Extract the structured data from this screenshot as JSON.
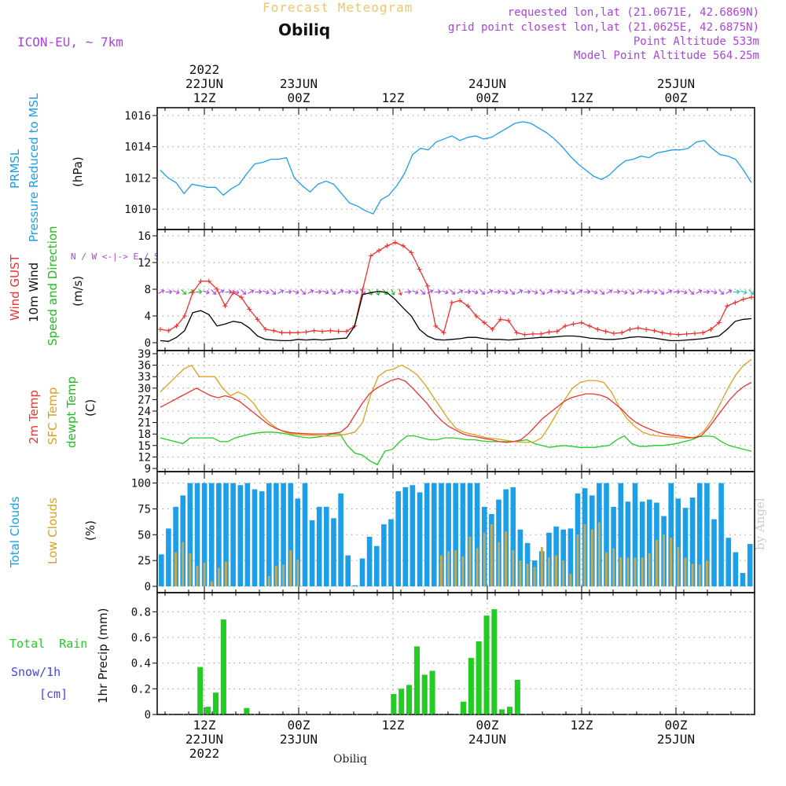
{
  "header": {
    "title": "Forecast Meteogram",
    "station": "Obiliq",
    "model": "ICON-EU, ~ 7km",
    "requested": "requested lon,lat (21.0671E, 42.6869N)",
    "gridpoint": "grid point closest lon,lat (21.0625E, 42.6875N)",
    "point_alt": "Point Altitude 533m",
    "model_alt": "Model Point Altitude 564.25m",
    "footer_station": "Obiliq",
    "watermark": "by Angel"
  },
  "time_axis": {
    "top_labels": [
      {
        "h": 12,
        "lines": [
          "2022",
          "22JUN",
          "12Z"
        ]
      },
      {
        "h": 24,
        "lines": [
          "23JUN",
          "00Z"
        ]
      },
      {
        "h": 36,
        "lines": [
          "12Z"
        ]
      },
      {
        "h": 48,
        "lines": [
          "24JUN",
          "00Z"
        ]
      },
      {
        "h": 60,
        "lines": [
          "12Z"
        ]
      },
      {
        "h": 72,
        "lines": [
          "25JUN",
          "00Z"
        ]
      }
    ],
    "bottom_labels": [
      {
        "h": 12,
        "lines": [
          "12Z",
          "22JUN",
          "2022"
        ]
      },
      {
        "h": 24,
        "lines": [
          "00Z",
          "23JUN"
        ]
      },
      {
        "h": 36,
        "lines": [
          "12Z"
        ]
      },
      {
        "h": 48,
        "lines": [
          "00Z",
          "24JUN"
        ]
      },
      {
        "h": 60,
        "lines": [
          "12Z"
        ]
      },
      {
        "h": 72,
        "lines": [
          "00Z",
          "25JUN"
        ]
      }
    ],
    "hour_range": [
      6,
      82
    ]
  },
  "colors": {
    "pressure": "#1a9fe8",
    "gust": "#ee3333",
    "wind": "#000000",
    "direction": "#22bb22",
    "sfc": "#dda020",
    "dewpt": "#22cc22",
    "cloud_total": "#1a9fe8",
    "cloud_low": "#c8a850",
    "rain": "#22cc22",
    "snow": "#4444ee",
    "title": "#e8c870",
    "purple": "#aa44dd"
  },
  "chart_data": [
    {
      "id": "pressure",
      "type": "line",
      "ylabel": "(hPa)",
      "side_labels": [
        "PRMSL",
        "Pressure Reduced to MSL"
      ],
      "ylim": [
        1009,
        1016.2
      ],
      "yticks": [
        1010,
        1012,
        1014,
        1016
      ],
      "series": [
        {
          "name": "PRMSL",
          "values": [
            1012.5,
            1012.0,
            1011.7,
            1011.0,
            1011.6,
            1011.5,
            1011.4,
            1011.4,
            1010.9,
            1011.3,
            1011.6,
            1012.3,
            1012.9,
            1013.0,
            1013.2,
            1013.2,
            1013.3,
            1012.0,
            1011.5,
            1011.1,
            1011.6,
            1011.8,
            1011.6,
            1011.0,
            1010.4,
            1010.2,
            1009.9,
            1009.7,
            1010.6,
            1010.9,
            1011.5,
            1012.3,
            1013.5,
            1013.9,
            1013.8,
            1014.3,
            1014.5,
            1014.7,
            1014.4,
            1014.6,
            1014.7,
            1014.5,
            1014.6,
            1014.9,
            1015.2,
            1015.5,
            1015.6,
            1015.5,
            1015.2,
            1014.9,
            1014.5,
            1014.0,
            1013.4,
            1012.9,
            1012.5,
            1012.1,
            1011.9,
            1012.2,
            1012.7,
            1013.1,
            1013.2,
            1013.4,
            1013.3,
            1013.6,
            1013.7,
            1013.8,
            1013.8,
            1013.9,
            1014.3,
            1014.4,
            1013.9,
            1013.5,
            1013.4,
            1013.2,
            1012.5,
            1011.7
          ]
        }
      ]
    },
    {
      "id": "wind",
      "type": "line",
      "ylabel": "(m/s)",
      "side_labels": [
        "Wind GUST",
        "10m Wind",
        "Speed and Direction"
      ],
      "compass": "N / W <-|-> E / S",
      "ylim": [
        0,
        16
      ],
      "yticks": [
        0,
        4,
        8,
        12,
        16
      ],
      "series": [
        {
          "name": "Wind GUST",
          "values": [
            2.0,
            1.8,
            2.5,
            4.0,
            7.5,
            9.2,
            9.2,
            8.0,
            5.5,
            7.5,
            6.8,
            5.0,
            3.5,
            2.0,
            1.8,
            1.5,
            1.5,
            1.5,
            1.6,
            1.8,
            1.7,
            1.8,
            1.7,
            1.7,
            2.5,
            8.0,
            13.0,
            13.8,
            14.5,
            15.0,
            14.5,
            13.5,
            11.0,
            8.5,
            2.5,
            1.5,
            6.0,
            6.3,
            5.5,
            4.0,
            3.0,
            2.0,
            3.5,
            3.3,
            1.5,
            1.2,
            1.3,
            1.3,
            1.6,
            1.7,
            2.5,
            2.8,
            3.0,
            2.5,
            2.0,
            1.7,
            1.4,
            1.5,
            2.0,
            2.2,
            2.0,
            1.8,
            1.5,
            1.3,
            1.2,
            1.3,
            1.4,
            1.5,
            2.0,
            3.0,
            5.5,
            6.0,
            6.5,
            6.8
          ]
        },
        {
          "name": "10m Wind",
          "values": [
            0.3,
            0.2,
            0.8,
            1.8,
            4.5,
            4.8,
            4.2,
            2.5,
            2.8,
            3.2,
            3.0,
            2.2,
            1.0,
            0.5,
            0.4,
            0.3,
            0.3,
            0.5,
            0.4,
            0.5,
            0.4,
            0.5,
            0.6,
            0.7,
            2.5,
            7.2,
            7.5,
            7.7,
            7.5,
            6.5,
            5.2,
            4.0,
            2.0,
            1.0,
            0.5,
            0.4,
            0.5,
            0.6,
            0.8,
            0.8,
            0.6,
            0.5,
            0.5,
            0.4,
            0.5,
            0.6,
            0.7,
            0.8,
            0.8,
            0.9,
            1.0,
            1.0,
            0.9,
            0.7,
            0.6,
            0.5,
            0.5,
            0.6,
            0.8,
            0.9,
            0.8,
            0.7,
            0.5,
            0.3,
            0.3,
            0.4,
            0.5,
            0.6,
            0.8,
            1.0,
            2.0,
            3.2,
            3.5,
            3.6
          ]
        },
        {
          "name": "Direction",
          "note": "arrow glyphs along upper row"
        }
      ]
    },
    {
      "id": "temperature",
      "type": "line",
      "ylabel": "(C)",
      "side_labels": [
        "2m Temp",
        "SFC Temp",
        "dewpt Temp"
      ],
      "ylim": [
        9,
        39
      ],
      "yticks": [
        9,
        12,
        15,
        18,
        21,
        24,
        27,
        30,
        33,
        36,
        39
      ],
      "series": [
        {
          "name": "2m Temp",
          "values": [
            25,
            26,
            27,
            28,
            29,
            30,
            29,
            28,
            27.5,
            28,
            27.5,
            26.5,
            25,
            23.5,
            22,
            20.5,
            19.5,
            18.8,
            18.4,
            18.2,
            18.1,
            18,
            18,
            18,
            18.2,
            18.5,
            20,
            23,
            26,
            28.5,
            30,
            31,
            32,
            32.5,
            31.8,
            30,
            28,
            26,
            23.5,
            21.5,
            20,
            19,
            18,
            17.5,
            17.2,
            16.8,
            16.5,
            16,
            15.8,
            16,
            16.5,
            18,
            20,
            22,
            23.5,
            25,
            26.5,
            27.5,
            28,
            28.5,
            28.5,
            28.2,
            27.5,
            26,
            24.5,
            22.5,
            21,
            20,
            19.2,
            18.5,
            18,
            17.7,
            17.5,
            17.2,
            17,
            17.5,
            19.5,
            22,
            24.5,
            27,
            29,
            30.5,
            31.5
          ]
        },
        {
          "name": "SFC Temp",
          "values": [
            29,
            31,
            33,
            35,
            36,
            33,
            33,
            33,
            30,
            28,
            29,
            28,
            26,
            23,
            21,
            19.5,
            18.5,
            18,
            17.8,
            17.7,
            17.6,
            17.5,
            17.4,
            17.6,
            18,
            18.5,
            21,
            28,
            33,
            34.5,
            35,
            36,
            35,
            33.5,
            31,
            28,
            25,
            22,
            19.5,
            18.5,
            18,
            17.5,
            17,
            16.8,
            16.5,
            16.2,
            15.9,
            15.8,
            15.9,
            17,
            20,
            23.5,
            27,
            30,
            31.5,
            32,
            32,
            31.5,
            29,
            25,
            22,
            20,
            18.5,
            17.8,
            17.5,
            17.3,
            17.2,
            17,
            16.9,
            17.3,
            19,
            22,
            26,
            30,
            33.5,
            36,
            37.5
          ]
        },
        {
          "name": "dewpt Temp",
          "values": [
            17,
            16.5,
            16,
            15.5,
            17,
            17,
            17,
            17,
            16,
            16,
            17,
            17.5,
            18,
            18.3,
            18.5,
            18.5,
            18.3,
            18,
            17.5,
            17.2,
            17,
            17.2,
            17.5,
            18,
            18,
            15,
            13,
            12.5,
            11,
            10,
            13.5,
            14,
            16,
            17.5,
            17.5,
            17,
            16.5,
            16.5,
            17,
            17,
            16.8,
            16.5,
            16.5,
            16.2,
            16,
            16,
            16,
            16,
            16.2,
            16.5,
            15.5,
            15,
            14.5,
            14.8,
            15,
            14.8,
            14.5,
            14.5,
            14.5,
            14.8,
            15,
            16.5,
            17.5,
            15.5,
            14.8,
            14.8,
            15,
            15,
            15.2,
            15.5,
            16,
            16.5,
            17.3,
            17.5,
            17.3,
            16,
            15,
            14.5,
            14,
            13.5
          ]
        }
      ]
    },
    {
      "id": "clouds",
      "type": "bar",
      "ylabel": "(%)",
      "side_labels": [
        "Total Clouds",
        "Low Clouds"
      ],
      "ylim": [
        0,
        105
      ],
      "yticks": [
        0,
        25,
        50,
        75,
        100
      ],
      "series": [
        {
          "name": "Total Clouds",
          "values": [
            31,
            56,
            77,
            88,
            100,
            100,
            100,
            100,
            100,
            100,
            100,
            98,
            100,
            94,
            92,
            100,
            100,
            100,
            100,
            85,
            100,
            64,
            77,
            77,
            66,
            90,
            30,
            1,
            27,
            48,
            39,
            60,
            65,
            92,
            96,
            98,
            91,
            100,
            100,
            100,
            100,
            100,
            100,
            100,
            100,
            77,
            70,
            84,
            94,
            96,
            55,
            42,
            25,
            34,
            52,
            58,
            55,
            56,
            90,
            95,
            88,
            100,
            100,
            77,
            100,
            82,
            100,
            82,
            84,
            81,
            68,
            100,
            85,
            76,
            86,
            100,
            100,
            65,
            100,
            47,
            33,
            13,
            41
          ]
        },
        {
          "name": "Low Clouds",
          "values": [
            0,
            0,
            33,
            43,
            32,
            20,
            23,
            5,
            18,
            24,
            0,
            0,
            0,
            0,
            0,
            10,
            20,
            21,
            35,
            26,
            0,
            0,
            0,
            0,
            0,
            0,
            0,
            0,
            0,
            0,
            0,
            0,
            0,
            0,
            0,
            0,
            0,
            0,
            0,
            30,
            34,
            35,
            29,
            48,
            37,
            52,
            60,
            43,
            53,
            35,
            25,
            22,
            19,
            38,
            28,
            30,
            25,
            12,
            50,
            60,
            55,
            62,
            33,
            37,
            28,
            28,
            28,
            28,
            32,
            45,
            50,
            47,
            38,
            28,
            22,
            21,
            25
          ]
        }
      ]
    },
    {
      "id": "precip",
      "type": "bar",
      "ylabel": "1hr Precip (mm)",
      "side_labels": [
        "Total  Rain",
        "Snow/1h",
        "[cm]"
      ],
      "ylim": [
        0,
        0.9
      ],
      "yticks": [
        0,
        0.2,
        0.4,
        0.6,
        0.8
      ],
      "ytick_labels": [
        "0",
        "0.2",
        "0.4",
        "0.6",
        "0.8"
      ],
      "series": [
        {
          "name": "Total Rain",
          "values": [
            0,
            0,
            0,
            0,
            0,
            0.37,
            0.06,
            0.17,
            0.74,
            0,
            0,
            0.05,
            0,
            0,
            0,
            0,
            0,
            0,
            0,
            0,
            0,
            0,
            0,
            0,
            0,
            0,
            0,
            0,
            0,
            0,
            0.16,
            0.2,
            0.23,
            0.53,
            0.31,
            0.34,
            0,
            0,
            0,
            0.1,
            0.44,
            0.57,
            0.77,
            0.82,
            0.04,
            0.06,
            0.27,
            0,
            0,
            0,
            0,
            0,
            0,
            0,
            0,
            0,
            0,
            0,
            0,
            0,
            0,
            0,
            0,
            0,
            0,
            0,
            0,
            0,
            0,
            0,
            0,
            0,
            0,
            0,
            0,
            0,
            0
          ]
        }
      ]
    }
  ]
}
